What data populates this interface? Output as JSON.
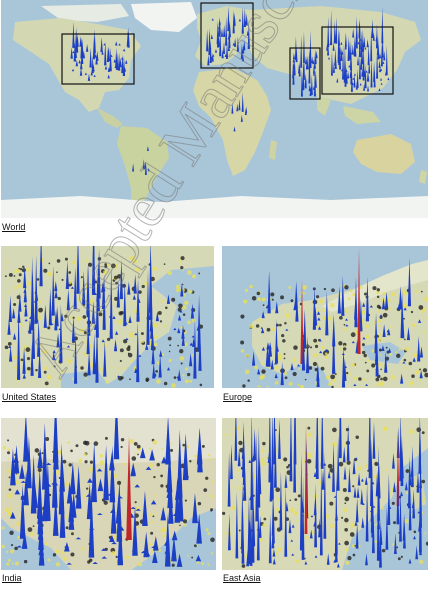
{
  "captions": {
    "world": "World",
    "us": "United States",
    "europe": "Europe",
    "india": "India",
    "east_asia": "East Asia"
  },
  "watermark": {
    "text": "Accepted Manuscript"
  },
  "colors": {
    "ocean": "#a9c6d8",
    "land": "#d4d8b2",
    "land_dark": "#b8c39a",
    "ice": "#f2f4f2",
    "spike_blue": "#1d3fc4",
    "spike_red": "#c0272d",
    "density_yellow": "#e9df5a",
    "box": "#111111"
  }
}
